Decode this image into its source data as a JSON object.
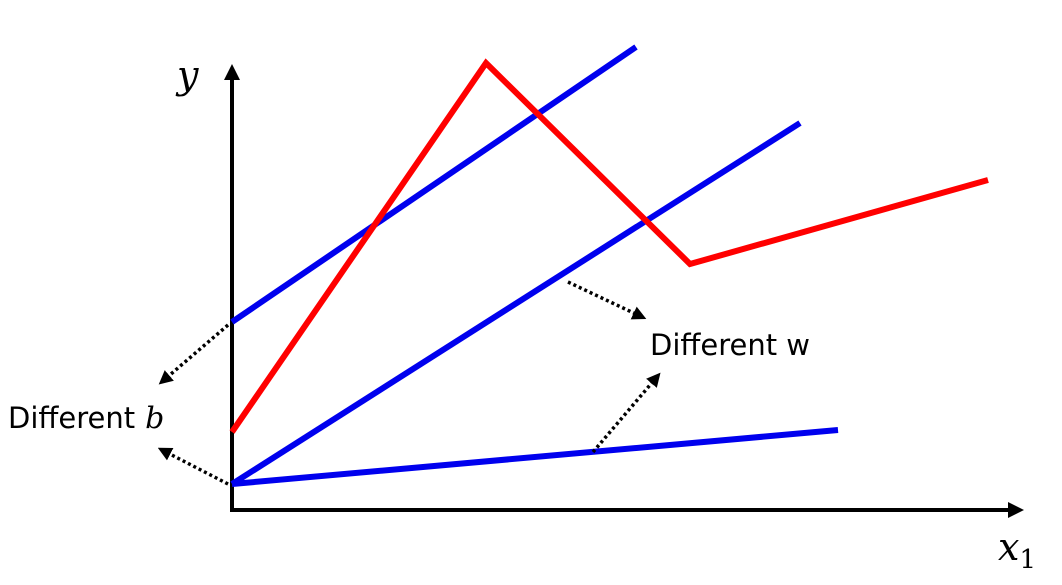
{
  "axes": {
    "y_label": "y",
    "x_label": "x",
    "x_subscript": "1"
  },
  "annotations": [
    {
      "text": "Different w"
    },
    {
      "text": "Different",
      "symbol": "b"
    }
  ]
}
